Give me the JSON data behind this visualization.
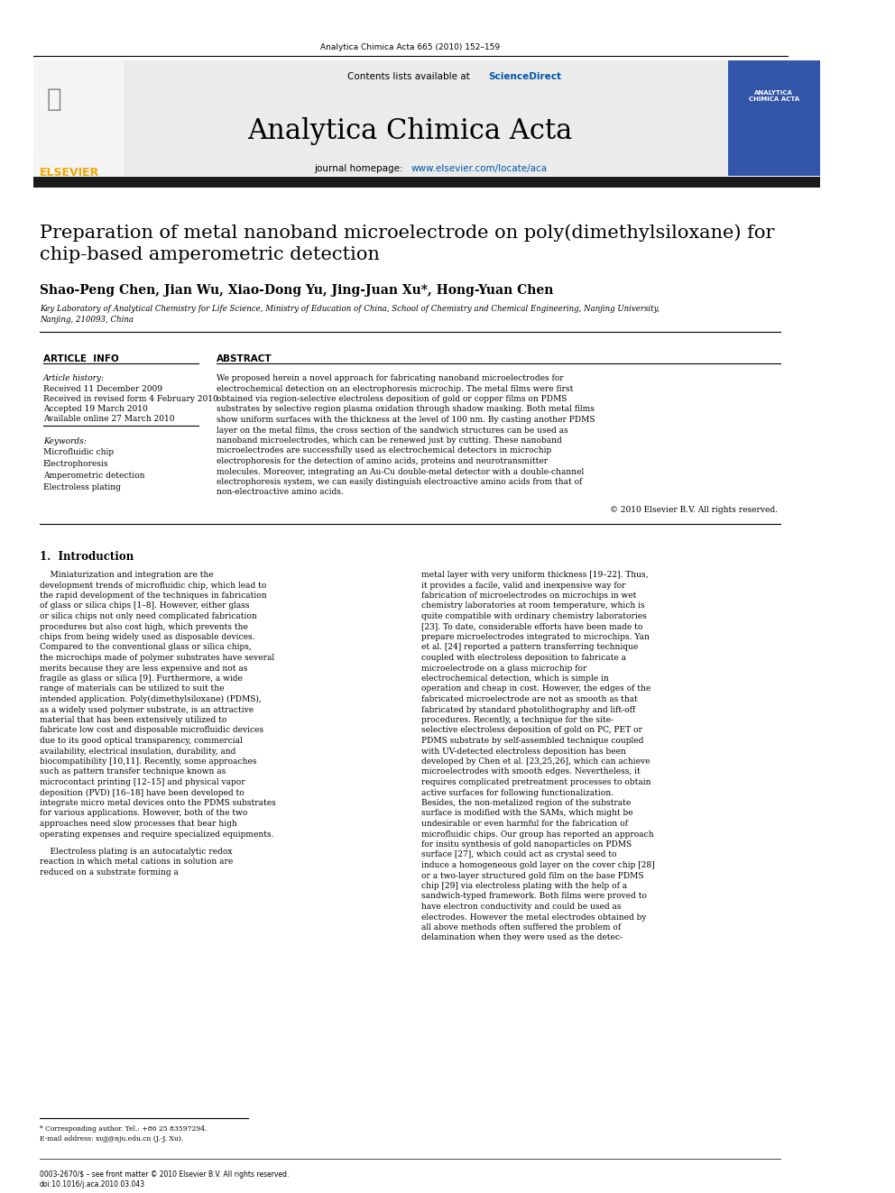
{
  "journal_ref": "Analytica Chimica Acta 665 (2010) 152–159",
  "journal_name": "Analytica Chimica Acta",
  "contents_line": "Contents lists available at ScienceDirect",
  "sciencedirect_color": "#0055AA",
  "journal_homepage": "journal homepage: www.elsevier.com/locate/aca",
  "homepage_url_color": "#0055AA",
  "title": "Preparation of metal nanoband microelectrode on poly(dimethylsiloxane) for\nchip-based amperometric detection",
  "authors": "Shao-Peng Chen, Jian Wu, Xiao-Dong Yu, Jing-Juan Xu*, Hong-Yuan Chen",
  "affiliation_line1": "Key Laboratory of Analytical Chemistry for Life Science, Ministry of Education of China, School of Chemistry and Chemical Engineering, Nanjing University,",
  "affiliation_line2": "Nanjing, 210093, China",
  "article_info_header": "ARTICLE  INFO",
  "abstract_header": "ABSTRACT",
  "article_history_label": "Article history:",
  "received": "Received 11 December 2009",
  "received_revised": "Received in revised form 4 February 2010",
  "accepted": "Accepted 19 March 2010",
  "available_online": "Available online 27 March 2010",
  "keywords_label": "Keywords:",
  "keywords": [
    "Microfluidic chip",
    "Electrophoresis",
    "Amperometric detection",
    "Electroless plating"
  ],
  "abstract_text": "We proposed herein a novel approach for fabricating nanoband microelectrodes for electrochemical detection on an electrophoresis microchip. The metal films were first obtained via region-selective electroless deposition of gold or copper films on PDMS substrates by selective region plasma oxidation through shadow masking. Both metal films show uniform surfaces with the thickness at the level of 100 nm. By casting another PDMS layer on the metal films, the cross section of the sandwich structures can be used as nanoband microelectrodes, which can be renewed just by cutting. These nanoband microelectrodes are successfully used as electrochemical detectors in microchip electrophoresis for the detection of amino acids, proteins and neurotransmitter molecules. Moreover, integrating an Au-Cu double-metal detector with a double-channel electrophoresis system, we can easily distinguish electroactive amino acids from that of non-electroactive amino acids.",
  "copyright": "© 2010 Elsevier B.V. All rights reserved.",
  "section1_title": "1.  Introduction",
  "intro_para1": "    Miniaturization and integration are the development trends of microfluidic chip, which lead to the rapid development of the techniques in fabrication of glass or silica chips [1–8]. However, either glass or silica chips not only need complicated fabrication procedures but also cost high, which prevents the chips from being widely used as disposable devices. Compared to the conventional glass or silica chips, the microchips made of polymer substrates have several merits because they are less expensive and not as fragile as glass or silica [9]. Furthermore, a wide range of materials can be utilized to suit the intended application. Poly(dimethylsiloxane) (PDMS), as a widely used polymer substrate, is an attractive material that has been extensively utilized to fabricate low cost and disposable microfluidic devices due to its good optical transparency, commercial availability, electrical insulation, durability, and biocompatibility [10,11]. Recently, some approaches such as pattern transfer technique known as microcontact printing [12–15] and physical vapor deposition (PVD) [16–18] have been developed to integrate micro metal devices onto the PDMS substrates for various applications. However, both of the two approaches need slow processes that bear high operating expenses and require specialized equipments.",
  "intro_para2": "    Electroless plating is an autocatalytic redox reaction in which metal cations in solution are reduced on a substrate forming a",
  "right_col_para1": "metal layer with very uniform thickness [19–22]. Thus, it provides a facile, valid and inexpensive way for fabrication of microelectrodes on microchips in wet chemistry laboratories at room temperature, which is quite compatible with ordinary chemistry laboratories [23]. To date, considerable efforts have been made to prepare microelectrodes integrated to microchips. Yan et al. [24] reported a pattern transferring technique coupled with electroless deposition to fabricate a microelectrode on a glass microchip for electrochemical detection, which is simple in operation and cheap in cost. However, the edges of the fabricated microelectrode are not as smooth as that fabricated by standard photolithography and lift-off procedures. Recently, a technique for the site-selective electroless deposition of gold on PC, PET or PDMS substrate by self-assembled technique coupled with UV-detected electroless deposition has been developed by Chen et al. [23,25,26], which can achieve microelectrodes with smooth edges. Nevertheless, it requires complicated pretreatment processes to obtain active surfaces for following functionalization. Besides, the non-metalized region of the substrate surface is modified with the SAMs, which might be undesirable or even harmful for the fabrication of microfluidic chips. Our group has reported an approach for insitu synthesis of gold nanoparticles on PDMS surface [27], which could act as crystal seed to induce a homogeneous gold layer on the cover chip [28] or a two-layer structured gold film on the base PDMS chip [29] via electroless plating with the help of a sandwich-typed framework. Both films were proved to have electron conductivity and could be used as electrodes. However the metal electrodes obtained by all above methods often suffered the problem of delamination when they were used as the detec-",
  "footnote_star": "* Corresponding author. Tel.: +86 25 83597294.",
  "footnote_email": "E-mail address: xujj@nju.edu.cn (J.-J. Xu).",
  "footer_issn": "0003-2670/$ – see front matter © 2010 Elsevier B.V. All rights reserved.",
  "footer_doi": "doi:10.1016/j.aca.2010.03.043",
  "bg_color": "#FFFFFF",
  "header_bg": "#E8E8E8",
  "dark_bar_color": "#1A1A1A",
  "elsevier_orange": "#F0A500",
  "elsevier_text_color": "#F0A500"
}
